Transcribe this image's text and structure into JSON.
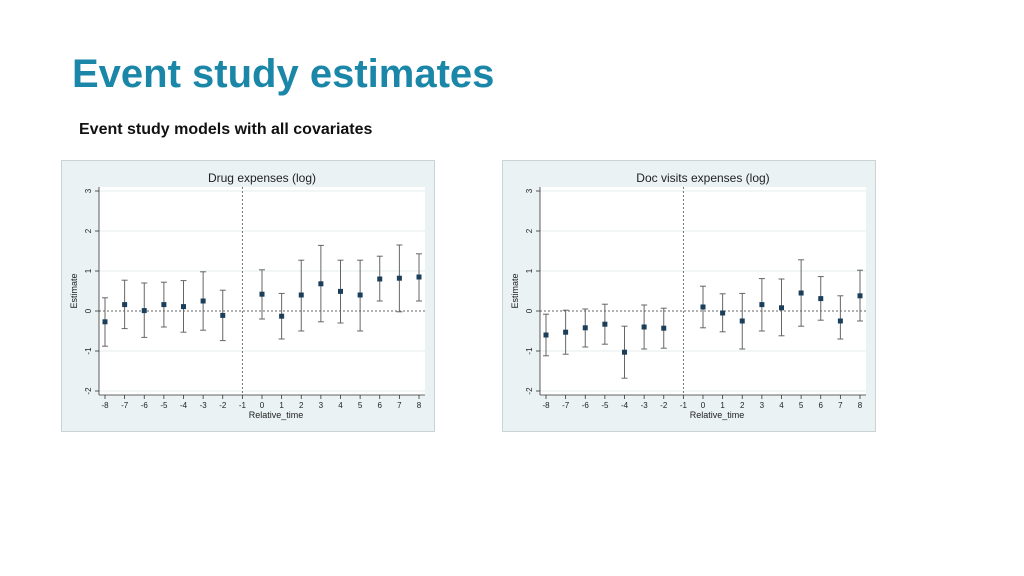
{
  "slide": {
    "title": "Event study estimates",
    "subtitle": "Event study models with all covariates"
  },
  "chart_data": [
    {
      "type": "scatter",
      "error_bars": true,
      "title": "Drug expenses (log)",
      "xlabel": "Relative_time",
      "ylabel": "Estimate",
      "xlim": [
        -8,
        8
      ],
      "ylim": [
        -2,
        3
      ],
      "xticks": [
        -8,
        -7,
        -6,
        -5,
        -4,
        -3,
        -2,
        -1,
        0,
        1,
        2,
        3,
        4,
        5,
        6,
        7,
        8
      ],
      "yticks": [
        -2,
        -1,
        0,
        1,
        2,
        3
      ],
      "reference_line_x": -1,
      "reference_line_y": 0,
      "grid": "horizontal",
      "series": [
        {
          "x": [
            -8,
            -7,
            -6,
            -5,
            -4,
            -3,
            -2,
            0,
            1,
            2,
            3,
            4,
            5,
            6,
            7,
            8
          ],
          "y": [
            -0.27,
            0.16,
            0.01,
            0.16,
            0.11,
            0.25,
            -0.11,
            0.42,
            -0.13,
            0.4,
            0.68,
            0.49,
            0.4,
            0.8,
            0.82,
            0.85
          ],
          "lower": [
            -0.88,
            -0.44,
            -0.66,
            -0.4,
            -0.53,
            -0.48,
            -0.74,
            -0.2,
            -0.7,
            -0.5,
            -0.27,
            -0.3,
            -0.5,
            0.25,
            -0.02,
            0.25
          ],
          "upper": [
            0.33,
            0.77,
            0.7,
            0.72,
            0.76,
            0.98,
            0.52,
            1.03,
            0.44,
            1.27,
            1.64,
            1.27,
            1.27,
            1.37,
            1.65,
            1.43
          ]
        }
      ]
    },
    {
      "type": "scatter",
      "error_bars": true,
      "title": "Doc visits expenses (log)",
      "xlabel": "Relative_time",
      "ylabel": "Estimate",
      "xlim": [
        -8,
        8
      ],
      "ylim": [
        -2,
        3
      ],
      "xticks": [
        -8,
        -7,
        -6,
        -5,
        -4,
        -3,
        -2,
        -1,
        0,
        1,
        2,
        3,
        4,
        5,
        6,
        7,
        8
      ],
      "yticks": [
        -2,
        -1,
        0,
        1,
        2,
        3
      ],
      "reference_line_x": -1,
      "reference_line_y": 0,
      "grid": "horizontal",
      "series": [
        {
          "x": [
            -8,
            -7,
            -6,
            -5,
            -4,
            -3,
            -2,
            0,
            1,
            2,
            3,
            4,
            5,
            6,
            7,
            8
          ],
          "y": [
            -0.6,
            -0.53,
            -0.42,
            -0.33,
            -1.03,
            -0.4,
            -0.43,
            0.1,
            -0.05,
            -0.25,
            0.16,
            0.08,
            0.45,
            0.31,
            -0.25,
            0.38
          ],
          "lower": [
            -1.12,
            -1.08,
            -0.9,
            -0.83,
            -1.68,
            -0.95,
            -0.93,
            -0.42,
            -0.52,
            -0.95,
            -0.5,
            -0.62,
            -0.38,
            -0.23,
            -0.7,
            -0.25
          ],
          "upper": [
            -0.08,
            0.02,
            0.05,
            0.17,
            -0.38,
            0.15,
            0.07,
            0.62,
            0.43,
            0.44,
            0.81,
            0.8,
            1.28,
            0.86,
            0.38,
            1.02
          ]
        }
      ]
    }
  ]
}
